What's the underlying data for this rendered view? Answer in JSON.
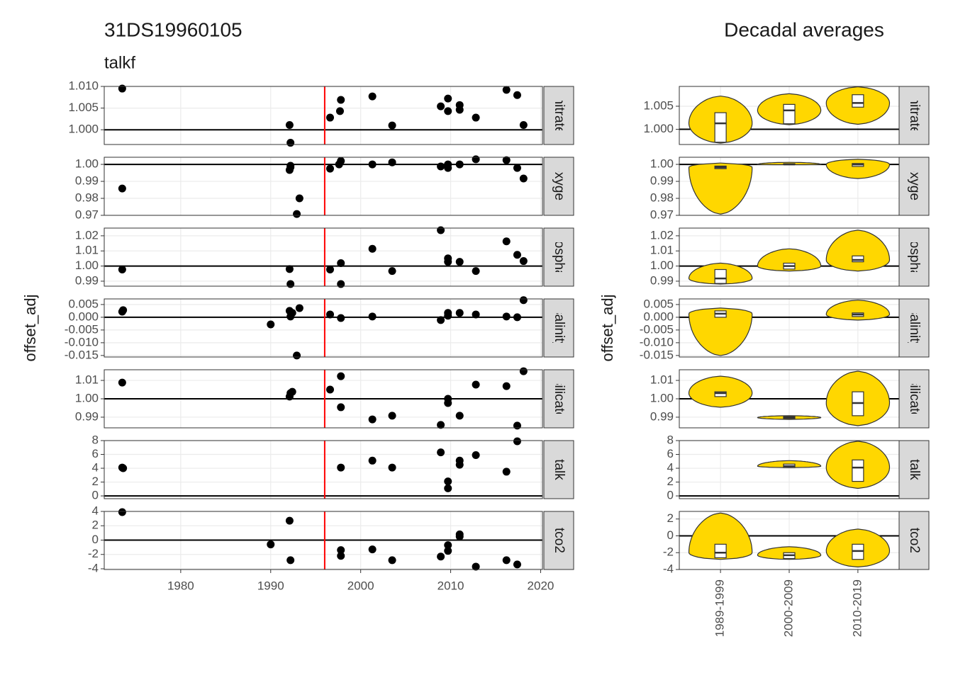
{
  "chart_data": [
    {
      "type": "scatter",
      "title": "31DS19960105",
      "subtitle": "talkf",
      "ylabel": "offset_adj",
      "xlim": [
        1971.5,
        2020.2
      ],
      "xticks": [
        1980,
        1990,
        2000,
        2010,
        2020
      ],
      "vline": 1996,
      "vline_color": "#ff0000",
      "hline_color": "#000000",
      "color": "#000000",
      "grid": true,
      "facets": [
        {
          "name": "nitrate",
          "ylim": [
            0.9966,
            1.01
          ],
          "yticks": [
            {
              "value": 1.0,
              "label": "1.000"
            },
            {
              "value": 1.005,
              "label": "1.005"
            },
            {
              "value": 1.01,
              "label": "1.010"
            }
          ],
          "hline": 1,
          "x": [
            1973.5,
            1992.1,
            1992.2,
            1996.6,
            1997.7,
            1997.8,
            2001.3,
            2003.5,
            2008.9,
            2009.7,
            2009.7,
            2011.0,
            2011.0,
            2012.8,
            2016.2,
            2017.4,
            2018.1
          ],
          "values": [
            1.0095,
            1.0011,
            0.997,
            1.0028,
            1.0043,
            1.0069,
            1.0077,
            1.001,
            1.0054,
            1.0072,
            1.0043,
            1.0057,
            1.0046,
            1.0028,
            1.0092,
            1.008,
            1.0011
          ]
        },
        {
          "name": "oxygen",
          "ylim": [
            0.97,
            1.0042
          ],
          "yticks": [
            0.97,
            0.98,
            0.99,
            {
              "value": 1.0,
              "label": "1.00"
            }
          ],
          "hline": 1,
          "x": [
            1973.5,
            1992.1,
            1992.2,
            1992.2,
            1993.2,
            1992.9,
            1996.6,
            1997.6,
            1997.8,
            2001.3,
            2003.5,
            2008.9,
            2009.7,
            2009.7,
            2011.0,
            2012.8,
            2016.2,
            2017.4,
            2018.1
          ],
          "values": [
            0.9858,
            0.9967,
            0.9983,
            0.9992,
            0.98,
            0.9708,
            0.9975,
            1.0,
            1.002,
            1.0,
            1.0012,
            0.9988,
            1.0,
            0.9979,
            1.0,
            1.003,
            1.0025,
            0.9979,
            0.9917
          ]
        },
        {
          "name": "phosphate",
          "ylim": [
            0.9867,
            1.0251
          ],
          "yticks": [
            0.99,
            {
              "value": 1.0,
              "label": "1.00"
            },
            1.01,
            1.02
          ],
          "hline": 1,
          "x": [
            1973.5,
            1992.1,
            1992.2,
            1996.6,
            1997.8,
            1997.8,
            2001.3,
            2003.5,
            2008.9,
            2009.7,
            2009.7,
            2011.0,
            2012.8,
            2016.2,
            2017.4,
            2018.1
          ],
          "values": [
            0.9977,
            0.998,
            0.9881,
            0.9977,
            1.0019,
            0.9881,
            1.0114,
            0.9967,
            1.0237,
            1.0051,
            1.0028,
            1.0028,
            0.9967,
            1.0163,
            1.0074,
            1.0033
          ]
        },
        {
          "name": "salinity",
          "ylim": [
            -0.0156,
            0.0072
          ],
          "yticks": [
            -0.015,
            {
              "value": -0.01,
              "label": "-0.010"
            },
            -0.005,
            {
              "value": 0,
              "label": "0.000"
            },
            0.005
          ],
          "hline": 0,
          "x": [
            1973.5,
            1973.6,
            1990.0,
            1992.1,
            1992.2,
            1992.4,
            1993.2,
            1992.9,
            1996.6,
            1997.8,
            2001.3,
            2008.9,
            2009.7,
            2009.7,
            2011.0,
            2012.8,
            2016.2,
            2017.4,
            2018.1
          ],
          "values": [
            0.0022,
            0.0028,
            -0.0028,
            0.0025,
            0.0003,
            0.0017,
            0.0036,
            -0.015,
            0.0011,
            -0.0003,
            0.0003,
            -0.0011,
            0.0006,
            0.0017,
            0.0017,
            0.0011,
            0.0003,
            0.0,
            0.0067
          ]
        },
        {
          "name": "silicate",
          "ylim": [
            0.9842,
            1.0158
          ],
          "yticks": [
            0.99,
            {
              "value": 1.0,
              "label": "1.00"
            },
            1.01
          ],
          "hline": 1,
          "x": [
            1973.5,
            1992.1,
            1992.2,
            1992.4,
            1996.6,
            1997.8,
            1997.8,
            2001.3,
            2003.5,
            2008.9,
            2009.7,
            2009.7,
            2011.0,
            2012.8,
            2016.2,
            2017.4,
            2018.1
          ],
          "values": [
            1.0088,
            1.0012,
            1.0031,
            1.0038,
            1.005,
            1.0123,
            0.9954,
            0.9888,
            0.9908,
            0.9858,
            1.0,
            0.9977,
            0.9908,
            1.0077,
            1.0069,
            0.9854,
            1.015
          ]
        },
        {
          "name": "talk",
          "ylim": [
            -0.4,
            8
          ],
          "yticks": [
            0,
            2,
            4,
            6,
            8
          ],
          "hline": 0,
          "x": [
            1973.5,
            1973.6,
            1997.8,
            2001.3,
            2003.5,
            2008.9,
            2009.7,
            2009.7,
            2011.0,
            2011.0,
            2012.8,
            2016.2,
            2017.4
          ],
          "values": [
            4.1,
            4.0,
            4.1,
            5.1,
            4.1,
            6.3,
            2.1,
            1.1,
            5.1,
            4.5,
            5.9,
            3.5,
            7.9
          ]
        },
        {
          "name": "tco2",
          "ylim": [
            -4.1,
            4.0
          ],
          "yticks": [
            -4,
            -2,
            0,
            2,
            4
          ],
          "hline": 0,
          "x": [
            1973.5,
            1992.1,
            1990.0,
            1992.2,
            1997.8,
            1997.8,
            2001.3,
            2003.5,
            2008.9,
            2009.7,
            2009.7,
            2011.0,
            2011.0,
            2012.8,
            2016.2,
            2017.4
          ],
          "values": [
            3.9,
            2.7,
            -0.6,
            -2.8,
            -1.4,
            -2.2,
            -1.3,
            -2.8,
            -2.3,
            -0.7,
            -1.5,
            0.8,
            0.5,
            -3.7,
            -2.8,
            -3.4
          ]
        }
      ]
    },
    {
      "type": "violin",
      "title": "Decadal averages",
      "ylabel": "offset_adj",
      "categories": [
        "1989-1999",
        "2000-2009",
        "2010-2019"
      ],
      "color": "#ffd700",
      "hline_color": "#000000",
      "grid": true,
      "facets": [
        {
          "name": "nitrate",
          "ylim": [
            0.9967,
            1.0093
          ],
          "yticks": [
            {
              "value": 1.0,
              "label": "1.000"
            },
            {
              "value": 1.005,
              "label": "1.005"
            }
          ],
          "hline": 1,
          "groups": [
            {
              "min": 0.997,
              "q1": 0.9972,
              "median": 1.0013,
              "q3": 1.0036,
              "max": 1.0072
            },
            {
              "min": 1.001,
              "q1": 1.0012,
              "median": 1.0041,
              "q3": 1.0054,
              "max": 1.0077
            },
            {
              "min": 1.0011,
              "q1": 1.0048,
              "median": 1.0057,
              "q3": 1.0075,
              "max": 1.0092
            }
          ]
        },
        {
          "name": "oxygen",
          "ylim": [
            0.97,
            1.0042
          ],
          "yticks": [
            0.97,
            0.98,
            0.99,
            {
              "value": 1.0,
              "label": "1.00"
            }
          ],
          "hline": 1,
          "groups": [
            {
              "min": 0.9708,
              "q1": 0.9975,
              "median": 0.9983,
              "q3": 0.999,
              "max": 1.0008
            },
            {
              "min": 0.9998,
              "q1": 0.9999,
              "median": 1.0,
              "q3": 1.0004,
              "max": 1.0012
            },
            {
              "min": 0.9917,
              "q1": 0.9988,
              "median": 1.0,
              "q3": 1.0005,
              "max": 1.003
            }
          ]
        },
        {
          "name": "phosphate",
          "ylim": [
            0.9867,
            1.0251
          ],
          "yticks": [
            0.99,
            {
              "value": 1.0,
              "label": "1.00"
            },
            1.01,
            1.02
          ],
          "hline": 1,
          "groups": [
            {
              "min": 0.9881,
              "q1": 0.9885,
              "median": 0.9918,
              "q3": 0.9977,
              "max": 1.0019
            },
            {
              "min": 0.9967,
              "q1": 0.998,
              "median": 1.0,
              "q3": 1.0019,
              "max": 1.0114
            },
            {
              "min": 0.9967,
              "q1": 1.0028,
              "median": 1.004,
              "q3": 1.0067,
              "max": 1.0237
            }
          ]
        },
        {
          "name": "salinity",
          "ylim": [
            -0.0156,
            0.0072
          ],
          "yticks": [
            -0.015,
            {
              "value": -0.01,
              "label": "-0.010"
            },
            -0.005,
            {
              "value": 0,
              "label": "0.000"
            },
            0.005
          ],
          "hline": 0,
          "groups": [
            {
              "min": -0.015,
              "q1": 0.0,
              "median": 0.0014,
              "q3": 0.0025,
              "max": 0.0036
            },
            null,
            {
              "min": -0.0011,
              "q1": 0.0003,
              "median": 0.0011,
              "q3": 0.0017,
              "max": 0.0067
            }
          ]
        },
        {
          "name": "silicate",
          "ylim": [
            0.9842,
            1.0158
          ],
          "yticks": [
            0.99,
            {
              "value": 1.0,
              "label": "1.00"
            },
            1.01
          ],
          "hline": 1,
          "groups": [
            {
              "min": 0.9954,
              "q1": 1.0012,
              "median": 1.0031,
              "q3": 1.0038,
              "max": 1.0123
            },
            {
              "min": 0.9888,
              "q1": 0.9893,
              "median": 0.9898,
              "q3": 0.9903,
              "max": 0.9908
            },
            {
              "min": 0.9854,
              "q1": 0.9908,
              "median": 0.9977,
              "q3": 1.0038,
              "max": 1.015
            }
          ]
        },
        {
          "name": "talk",
          "ylim": [
            -0.4,
            8
          ],
          "yticks": [
            0,
            2,
            4,
            6,
            8
          ],
          "hline": 0,
          "groups": [
            null,
            {
              "min": 4.1,
              "q1": 4.1,
              "median": 4.3,
              "q3": 4.6,
              "max": 5.1
            },
            {
              "min": 1.1,
              "q1": 2.1,
              "median": 4.1,
              "q3": 5.2,
              "max": 7.9
            }
          ]
        },
        {
          "name": "tco2",
          "ylim": [
            -4.0,
            2.9
          ],
          "yticks": [
            -4,
            -2,
            0,
            2
          ],
          "hline": 0,
          "groups": [
            {
              "min": -2.8,
              "q1": -2.6,
              "median": -2.0,
              "q3": -1.0,
              "max": 2.7
            },
            {
              "min": -2.8,
              "q1": -2.7,
              "median": -2.3,
              "q3": -2.0,
              "max": -1.3
            },
            {
              "min": -3.7,
              "q1": -2.8,
              "median": -1.8,
              "q3": -1.0,
              "max": 0.8
            }
          ]
        }
      ]
    }
  ]
}
